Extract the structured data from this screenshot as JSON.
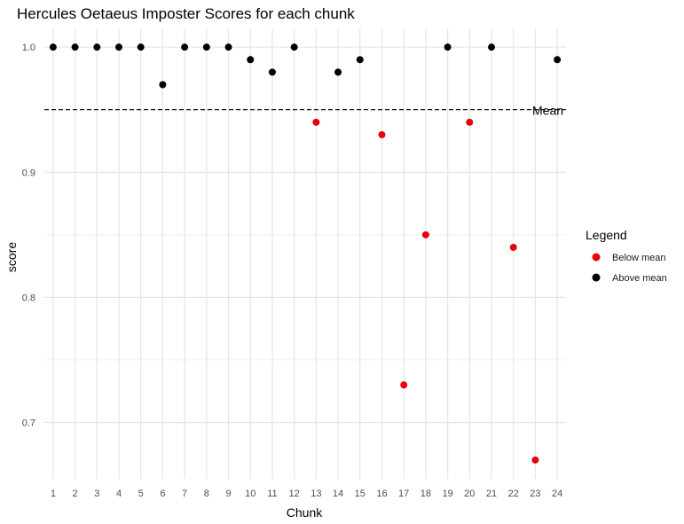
{
  "chart_data": {
    "type": "scatter",
    "title": "Hercules Oetaeus Imposter Scores for each chunk",
    "xlabel": "Chunk",
    "ylabel": "score",
    "x": [
      1,
      2,
      3,
      4,
      5,
      6,
      7,
      8,
      9,
      10,
      11,
      12,
      13,
      14,
      15,
      16,
      17,
      18,
      19,
      20,
      21,
      22,
      23,
      24
    ],
    "values": [
      1.0,
      1.0,
      1.0,
      1.0,
      1.0,
      0.97,
      1.0,
      1.0,
      1.0,
      0.99,
      0.98,
      1.0,
      0.94,
      0.98,
      0.99,
      0.93,
      0.73,
      0.85,
      1.0,
      0.94,
      1.0,
      0.84,
      0.67,
      0.99
    ],
    "xlim": [
      0.6,
      24.4
    ],
    "ylim": [
      0.655,
      1.015
    ],
    "x_ticks": [
      "1",
      "2",
      "3",
      "4",
      "5",
      "6",
      "7",
      "8",
      "9",
      "10",
      "11",
      "12",
      "13",
      "14",
      "15",
      "16",
      "17",
      "18",
      "19",
      "20",
      "21",
      "22",
      "23",
      "24"
    ],
    "y_ticks": [
      0.7,
      0.8,
      0.9,
      1.0
    ],
    "y_tick_labels": [
      "0.7",
      "0.8",
      "0.9",
      "1.0"
    ],
    "grid": true,
    "reference_line": {
      "value": 0.95,
      "label": "Mean",
      "style": "dashed"
    },
    "legend": {
      "title": "Legend",
      "position": "right",
      "entries": [
        {
          "label": "Below mean",
          "color": "#e8000b"
        },
        {
          "label": "Above mean",
          "color": "#000000"
        }
      ]
    }
  }
}
